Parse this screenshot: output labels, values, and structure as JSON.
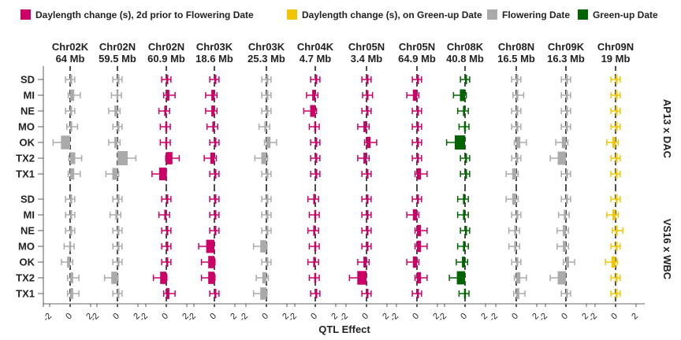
{
  "chart_data": {
    "type": "bar",
    "xlabel": "QTL Effect",
    "x_ticks": [
      "-2",
      "0",
      "2"
    ],
    "legend": [
      {
        "name": "Daylength change (s), 2d prior to Flowering Date",
        "color": "#CC0066"
      },
      {
        "name": "Daylength change (s), on Green-up Date",
        "color": "#F2C500"
      },
      {
        "name": "Flowering Date",
        "color": "#AAAAAA"
      },
      {
        "name": "Green-up Date",
        "color": "#006400"
      }
    ],
    "legend_position": "top",
    "vline_at": 0,
    "panels": [
      {
        "chr": "Chr02K",
        "pos": "64 Mb",
        "color": "#AAAAAA"
      },
      {
        "chr": "Chr02N",
        "pos": "59.5 Mb",
        "color": "#AAAAAA"
      },
      {
        "chr": "Chr02N",
        "pos": "60.9 Mb",
        "color": "#CC0066"
      },
      {
        "chr": "Chr03K",
        "pos": "18.6 Mb",
        "color": "#CC0066"
      },
      {
        "chr": "Chr03K",
        "pos": "25.3 Mb",
        "color": "#AAAAAA"
      },
      {
        "chr": "Chr04K",
        "pos": "4.7 Mb",
        "color": "#CC0066"
      },
      {
        "chr": "Chr05N",
        "pos": "3.4 Mb",
        "color": "#CC0066"
      },
      {
        "chr": "Chr05N",
        "pos": "64.9 Mb",
        "color": "#CC0066"
      },
      {
        "chr": "Chr08K",
        "pos": "40.8 Mb",
        "color": "#006400"
      },
      {
        "chr": "Chr08N",
        "pos": "16.5 Mb",
        "color": "#AAAAAA"
      },
      {
        "chr": "Chr09K",
        "pos": "16.3 Mb",
        "color": "#AAAAAA"
      },
      {
        "chr": "Chr09N",
        "pos": "19 Mb",
        "color": "#F2C500"
      }
    ],
    "crosses": [
      {
        "name": "AP13 x DAC",
        "sites": [
          "SD",
          "MI",
          "NE",
          "MO",
          "OK",
          "TX2",
          "TX1"
        ]
      },
      {
        "name": "VS16 x WBC",
        "sites": [
          "SD",
          "MI",
          "NE",
          "MO",
          "OK",
          "TX2",
          "TX1"
        ]
      }
    ],
    "effects": [
      [
        [
          0.0,
          0.4,
          0.0,
          0.2,
          -0.9,
          0.5,
          0.4
        ],
        [
          0.0,
          -0.1,
          -0.3,
          0.0,
          -0.3,
          1.0,
          -0.5
        ],
        [
          0.0,
          0.3,
          -0.2,
          -0.1,
          -0.1,
          0.6,
          -0.7
        ],
        [
          0.0,
          -0.3,
          -0.3,
          -0.2,
          0.0,
          -0.4,
          0.0
        ],
        [
          0.0,
          0.0,
          0.0,
          -0.2,
          0.4,
          -0.5,
          0.0
        ],
        [
          0.0,
          -0.3,
          -0.5,
          -0.1,
          0.0,
          0.0,
          0.0
        ],
        [
          0.0,
          0.1,
          0.0,
          -0.3,
          0.4,
          -0.3,
          0.0
        ],
        [
          0.0,
          -0.4,
          0.0,
          0.0,
          0.0,
          0.0,
          0.4
        ],
        [
          0.0,
          -0.5,
          -0.2,
          -0.1,
          -1.0,
          0.0,
          0.0
        ],
        [
          0.0,
          0.2,
          0.0,
          0.0,
          0.4,
          0.0,
          -0.4
        ],
        [
          0.0,
          0.0,
          0.0,
          0.0,
          -0.4,
          -0.8,
          0.0
        ],
        [
          0.0,
          0.0,
          0.0,
          0.0,
          -0.3,
          0.0,
          0.0
        ]
      ],
      [
        [
          0.0,
          0.0,
          0.0,
          -0.1,
          -0.3,
          0.3,
          0.3
        ],
        [
          0.0,
          -0.2,
          0.0,
          0.0,
          0.0,
          -0.6,
          0.0
        ],
        [
          0.0,
          -0.2,
          0.0,
          0.0,
          0.0,
          -0.6,
          0.3
        ],
        [
          0.0,
          0.0,
          0.0,
          -0.8,
          -0.6,
          -0.6,
          0.0
        ],
        [
          0.0,
          0.0,
          0.0,
          -0.6,
          0.0,
          -0.4,
          -0.6
        ],
        [
          -0.2,
          -0.1,
          -0.2,
          -0.1,
          -0.2,
          -0.1,
          0.0
        ],
        [
          0.0,
          0.0,
          0.0,
          0.0,
          -0.3,
          -0.9,
          0.0
        ],
        [
          0.0,
          -0.4,
          0.4,
          0.4,
          -0.4,
          0.4,
          0.0
        ],
        [
          -0.2,
          -0.2,
          0.0,
          -0.2,
          -0.3,
          -0.8,
          -0.1
        ],
        [
          -0.4,
          0.0,
          -0.2,
          -0.2,
          0.0,
          0.4,
          0.3
        ],
        [
          0.0,
          -0.2,
          -0.3,
          -0.3,
          0.3,
          -0.8,
          0.0
        ],
        [
          0.0,
          -0.3,
          0.2,
          0.0,
          -0.4,
          0.0,
          0.0
        ]
      ]
    ]
  }
}
